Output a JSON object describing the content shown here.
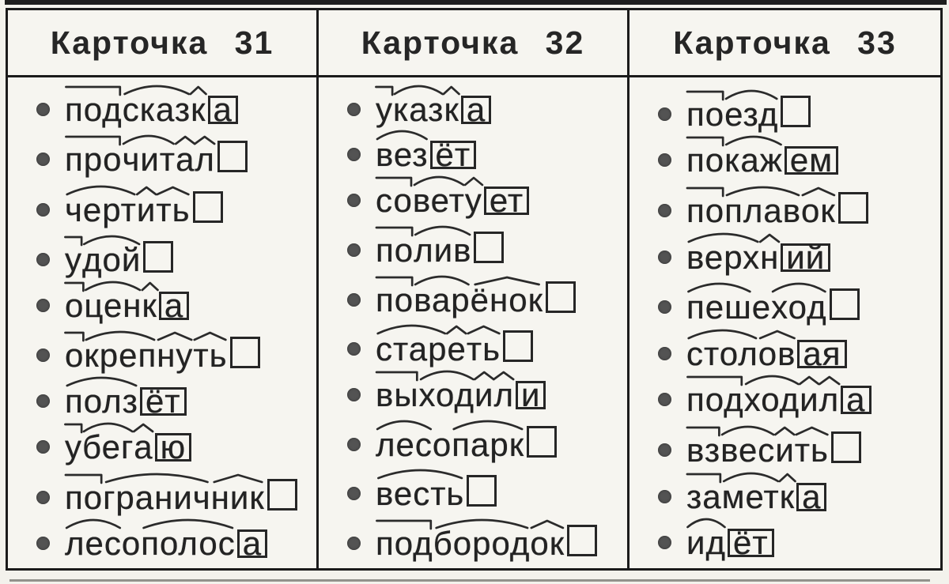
{
  "colors": {
    "ink": "#232323",
    "paper": "#f3f2ec",
    "line": "#1b1b1b",
    "bullet": "#535353"
  },
  "cards": [
    {
      "title": "Карточка 31",
      "words": [
        [
          {
            "t": "под",
            "m": "prefix"
          },
          {
            "t": "сказ",
            "m": "root"
          },
          {
            "t": "к",
            "m": "suffix"
          },
          {
            "t": "а",
            "m": "ending"
          }
        ],
        [
          {
            "t": "про",
            "m": "prefix"
          },
          {
            "t": "чит",
            "m": "root"
          },
          {
            "t": "а",
            "m": "suffix"
          },
          {
            "t": "л",
            "m": "suffix"
          },
          {
            "t": "",
            "m": "ending"
          }
        ],
        [
          {
            "t": "черт",
            "m": "root"
          },
          {
            "t": "и",
            "m": "suffix"
          },
          {
            "t": "ть",
            "m": "suffix"
          },
          {
            "t": "",
            "m": "ending"
          }
        ],
        [
          {
            "t": "у",
            "m": "prefix"
          },
          {
            "t": "дой",
            "m": "root"
          },
          {
            "t": "",
            "m": "ending"
          }
        ],
        [
          {
            "t": "о",
            "m": "prefix"
          },
          {
            "t": "цен",
            "m": "root"
          },
          {
            "t": "к",
            "m": "suffix"
          },
          {
            "t": "а",
            "m": "ending"
          }
        ],
        [
          {
            "t": "о",
            "m": "prefix"
          },
          {
            "t": "креп",
            "m": "root"
          },
          {
            "t": "ну",
            "m": "suffix"
          },
          {
            "t": "ть",
            "m": "suffix"
          },
          {
            "t": "",
            "m": "ending"
          }
        ],
        [
          {
            "t": "полз",
            "m": "root"
          },
          {
            "t": "ёт",
            "m": "ending"
          }
        ],
        [
          {
            "t": "у",
            "m": "prefix"
          },
          {
            "t": "бег",
            "m": "root"
          },
          {
            "t": "а",
            "m": "suffix"
          },
          {
            "t": "ю",
            "m": "ending"
          }
        ],
        [
          {
            "t": "по",
            "m": "prefix"
          },
          {
            "t": "гранич",
            "m": "root"
          },
          {
            "t": "ник",
            "m": "suffix"
          },
          {
            "t": "",
            "m": "ending"
          }
        ],
        [
          {
            "t": "лес",
            "m": "root"
          },
          {
            "t": "о",
            "m": "plain"
          },
          {
            "t": "полос",
            "m": "root"
          },
          {
            "t": "а",
            "m": "ending"
          }
        ]
      ]
    },
    {
      "title": "Карточка 32",
      "words": [
        [
          {
            "t": "у",
            "m": "prefix"
          },
          {
            "t": "каз",
            "m": "root"
          },
          {
            "t": "к",
            "m": "suffix"
          },
          {
            "t": "а",
            "m": "ending"
          }
        ],
        [
          {
            "t": "вез",
            "m": "root"
          },
          {
            "t": "ёт",
            "m": "ending"
          }
        ],
        [
          {
            "t": "со",
            "m": "prefix"
          },
          {
            "t": "вет",
            "m": "root"
          },
          {
            "t": "у",
            "m": "suffix"
          },
          {
            "t": "ет",
            "m": "ending"
          }
        ],
        [
          {
            "t": "по",
            "m": "prefix"
          },
          {
            "t": "лив",
            "m": "root"
          },
          {
            "t": "",
            "m": "ending"
          }
        ],
        [
          {
            "t": "по",
            "m": "prefix"
          },
          {
            "t": "вар",
            "m": "root"
          },
          {
            "t": "ёнок",
            "m": "suffix"
          },
          {
            "t": "",
            "m": "ending"
          }
        ],
        [
          {
            "t": "стар",
            "m": "root"
          },
          {
            "t": "е",
            "m": "suffix"
          },
          {
            "t": "ть",
            "m": "suffix"
          },
          {
            "t": "",
            "m": "ending"
          }
        ],
        [
          {
            "t": "вы",
            "m": "prefix"
          },
          {
            "t": "ход",
            "m": "root"
          },
          {
            "t": "и",
            "m": "suffix"
          },
          {
            "t": "л",
            "m": "suffix"
          },
          {
            "t": "и",
            "m": "ending"
          }
        ],
        [
          {
            "t": "лес",
            "m": "root"
          },
          {
            "t": "о",
            "m": "plain"
          },
          {
            "t": "парк",
            "m": "root"
          },
          {
            "t": "",
            "m": "ending"
          }
        ],
        [
          {
            "t": "весть",
            "m": "root"
          },
          {
            "t": "",
            "m": "ending"
          }
        ],
        [
          {
            "t": "под",
            "m": "prefix"
          },
          {
            "t": "бород",
            "m": "root"
          },
          {
            "t": "ок",
            "m": "suffix"
          },
          {
            "t": "",
            "m": "ending"
          }
        ]
      ]
    },
    {
      "title": "Карточка 33",
      "words": [
        [
          {
            "t": "по",
            "m": "prefix"
          },
          {
            "t": "езд",
            "m": "root"
          },
          {
            "t": "",
            "m": "ending"
          }
        ],
        [
          {
            "t": "по",
            "m": "prefix"
          },
          {
            "t": "каж",
            "m": "root"
          },
          {
            "t": "ем",
            "m": "ending"
          }
        ],
        [
          {
            "t": "по",
            "m": "prefix"
          },
          {
            "t": "плав",
            "m": "root"
          },
          {
            "t": "ок",
            "m": "suffix"
          },
          {
            "t": "",
            "m": "ending"
          }
        ],
        [
          {
            "t": "верх",
            "m": "root"
          },
          {
            "t": "н",
            "m": "suffix"
          },
          {
            "t": "ий",
            "m": "ending"
          }
        ],
        [
          {
            "t": "пеш",
            "m": "root"
          },
          {
            "t": "е",
            "m": "plain"
          },
          {
            "t": "ход",
            "m": "root"
          },
          {
            "t": "",
            "m": "ending"
          }
        ],
        [
          {
            "t": "стол",
            "m": "root"
          },
          {
            "t": "ов",
            "m": "suffix"
          },
          {
            "t": "ая",
            "m": "ending"
          }
        ],
        [
          {
            "t": "под",
            "m": "prefix"
          },
          {
            "t": "ход",
            "m": "root"
          },
          {
            "t": "и",
            "m": "suffix"
          },
          {
            "t": "л",
            "m": "suffix"
          },
          {
            "t": "а",
            "m": "ending"
          }
        ],
        [
          {
            "t": "вз",
            "m": "prefix"
          },
          {
            "t": "вес",
            "m": "root"
          },
          {
            "t": "и",
            "m": "suffix"
          },
          {
            "t": "ть",
            "m": "suffix"
          },
          {
            "t": "",
            "m": "ending"
          }
        ],
        [
          {
            "t": "за",
            "m": "prefix"
          },
          {
            "t": "мет",
            "m": "root"
          },
          {
            "t": "к",
            "m": "suffix"
          },
          {
            "t": "а",
            "m": "ending"
          }
        ],
        [
          {
            "t": "ид",
            "m": "root"
          },
          {
            "t": "ёт",
            "m": "ending"
          }
        ]
      ]
    }
  ]
}
